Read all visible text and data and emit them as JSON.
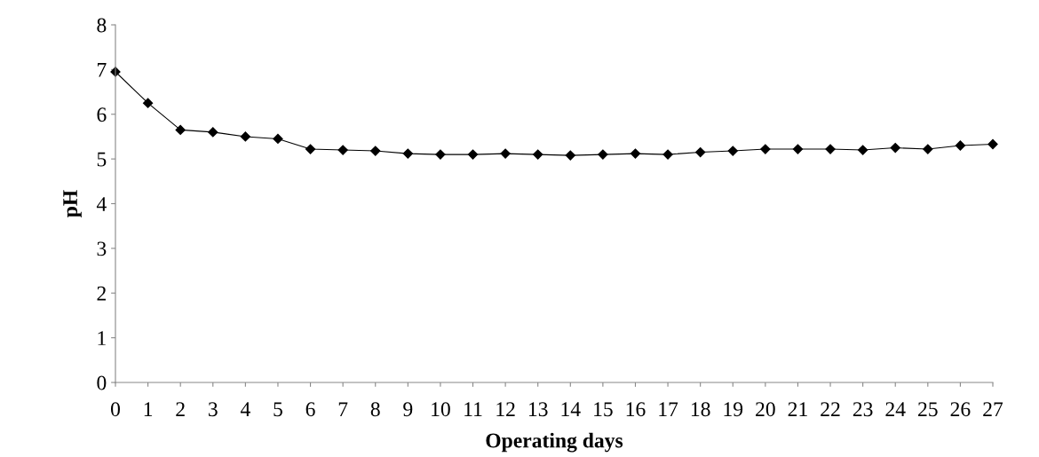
{
  "chart_data": {
    "type": "line",
    "xlabel": "Operating days",
    "ylabel": "pH",
    "x": [
      0,
      1,
      2,
      3,
      4,
      5,
      6,
      7,
      8,
      9,
      10,
      11,
      12,
      13,
      14,
      15,
      16,
      17,
      18,
      19,
      20,
      21,
      22,
      23,
      24,
      25,
      26,
      27
    ],
    "series": [
      {
        "color": "#000000",
        "values": [
          6.95,
          6.25,
          5.65,
          5.6,
          5.5,
          5.45,
          5.22,
          5.2,
          5.18,
          5.12,
          5.1,
          5.1,
          5.12,
          5.1,
          5.08,
          5.1,
          5.12,
          5.1,
          5.15,
          5.18,
          5.22,
          5.22,
          5.22,
          5.2,
          5.25,
          5.22,
          5.3,
          5.33
        ]
      }
    ],
    "xlim": [
      0,
      27
    ],
    "xticks": [
      0,
      1,
      2,
      3,
      4,
      5,
      6,
      7,
      8,
      9,
      10,
      11,
      12,
      13,
      14,
      15,
      16,
      17,
      18,
      19,
      20,
      21,
      22,
      23,
      24,
      25,
      26,
      27
    ],
    "ylim": [
      0,
      8
    ],
    "yticks": [
      0,
      1,
      2,
      3,
      4,
      5,
      6,
      7,
      8
    ],
    "marker": "diamond",
    "line_style": "solid",
    "grid": false,
    "legend": false
  }
}
